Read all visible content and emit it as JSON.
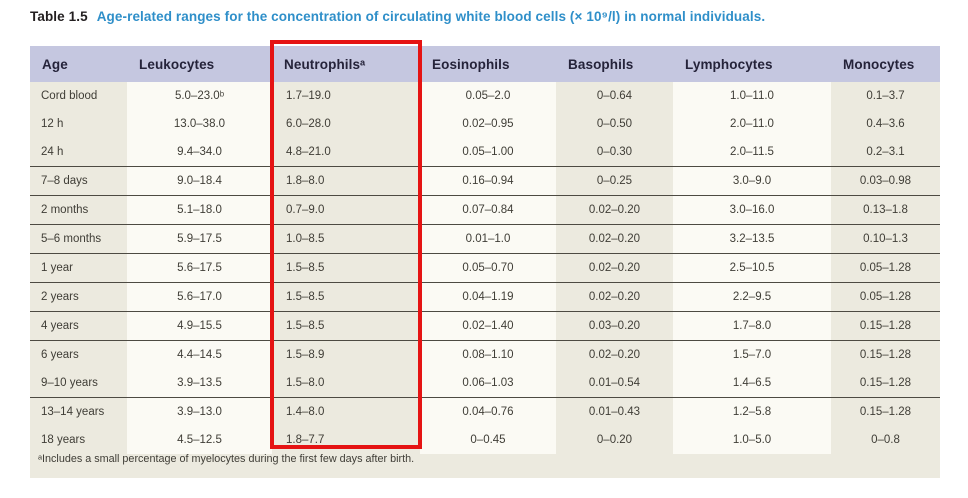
{
  "title": {
    "label": "Table 1.5",
    "text": "Age-related ranges for the concentration of circulating white blood cells (× 10⁹/l) in normal individuals."
  },
  "table": {
    "columns": [
      "Age",
      "Leukocytes",
      "Neutrophilsᵃ",
      "Eosinophils",
      "Basophils",
      "Lymphocytes",
      "Monocytes"
    ],
    "highlighted_column": "Neutrophils",
    "rows": [
      {
        "separator_above": false,
        "cells": [
          "Cord blood",
          "5.0–23.0ᵇ",
          "1.7–19.0",
          "0.05–2.0",
          "0–0.64",
          "1.0–11.0",
          "0.1–3.7"
        ]
      },
      {
        "separator_above": false,
        "cells": [
          "12 h",
          "13.0–38.0",
          "6.0–28.0",
          "0.02–0.95",
          "0–0.50",
          "2.0–11.0",
          "0.4–3.6"
        ]
      },
      {
        "separator_above": false,
        "cells": [
          "24 h",
          "9.4–34.0",
          "4.8–21.0",
          "0.05–1.00",
          "0–0.30",
          "2.0–11.5",
          "0.2–3.1"
        ]
      },
      {
        "separator_above": true,
        "cells": [
          "7–8 days",
          "9.0–18.4",
          "1.8–8.0",
          "0.16–0.94",
          "0–0.25",
          "3.0–9.0",
          "0.03–0.98"
        ]
      },
      {
        "separator_above": true,
        "cells": [
          "2 months",
          "5.1–18.0",
          "0.7–9.0",
          "0.07–0.84",
          "0.02–0.20",
          "3.0–16.0",
          "0.13–1.8"
        ]
      },
      {
        "separator_above": true,
        "cells": [
          "5–6 months",
          "5.9–17.5",
          "1.0–8.5",
          "0.01–1.0",
          "0.02–0.20",
          "3.2–13.5",
          "0.10–1.3"
        ]
      },
      {
        "separator_above": true,
        "cells": [
          "1 year",
          "5.6–17.5",
          "1.5–8.5",
          "0.05–0.70",
          "0.02–0.20",
          "2.5–10.5",
          "0.05–1.28"
        ]
      },
      {
        "separator_above": true,
        "cells": [
          "2 years",
          "5.6–17.0",
          "1.5–8.5",
          "0.04–1.19",
          "0.02–0.20",
          "2.2–9.5",
          "0.05–1.28"
        ]
      },
      {
        "separator_above": true,
        "cells": [
          "4 years",
          "4.9–15.5",
          "1.5–8.5",
          "0.02–1.40",
          "0.03–0.20",
          "1.7–8.0",
          "0.15–1.28"
        ]
      },
      {
        "separator_above": true,
        "cells": [
          "6 years",
          "4.4–14.5",
          "1.5–8.9",
          "0.08–1.10",
          "0.02–0.20",
          "1.5–7.0",
          "0.15–1.28"
        ]
      },
      {
        "separator_above": false,
        "cells": [
          "9–10 years",
          "3.9–13.5",
          "1.5–8.0",
          "0.06–1.03",
          "0.01–0.54",
          "1.4–6.5",
          "0.15–1.28"
        ]
      },
      {
        "separator_above": true,
        "cells": [
          "13–14 years",
          "3.9–13.0",
          "1.4–8.0",
          "0.04–0.76",
          "0.01–0.43",
          "1.2–5.8",
          "0.15–1.28"
        ]
      },
      {
        "separator_above": false,
        "cells": [
          "18 years",
          "4.5–12.5",
          "1.8–7.7",
          "0–0.45",
          "0–0.20",
          "1.0–5.0",
          "0–0.8"
        ]
      }
    ]
  },
  "footnote": "ᵃIncludes a small percentage of myelocytes during the first few days after birth.",
  "colors": {
    "title_blue": "#2f8fc9",
    "header_bg": "#c5c7e0",
    "panel_beige": "#eceadf",
    "light_column": "#fbfaf4",
    "highlight_red": "#e51313",
    "text": "#3f3d36"
  }
}
